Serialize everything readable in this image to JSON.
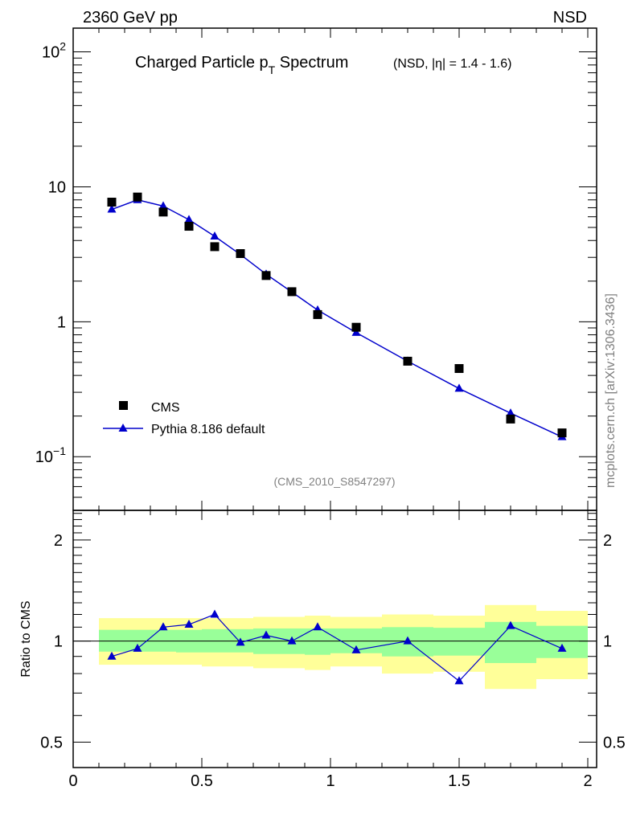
{
  "header": {
    "left": "2360 GeV pp",
    "right": "NSD",
    "watermark": "mcplots.cern.ch [arXiv:1306.3436]",
    "analysis_tag": "(CMS_2010_S8547297)"
  },
  "title": {
    "main": "Charged Particle p",
    "main_sub": "T",
    "main_suffix": " Spectrum",
    "detail": "(NSD, |η| = 1.4 - 1.6)"
  },
  "legend": {
    "data_label": "CMS",
    "mc_label": "Pythia 8.186 default"
  },
  "ratio_ylabel": "Ratio to CMS",
  "colors": {
    "mc_line": "#0000cc",
    "data_marker": "#000000",
    "band_inner": "#99ff99",
    "band_outer": "#ffff99",
    "watermark": "#808080"
  },
  "chart_data": [
    {
      "type": "scatter",
      "panel": "main",
      "yscale": "log",
      "xlim": [
        0,
        2
      ],
      "ylim": [
        0.04,
        150
      ],
      "yticks": [
        {
          "value": 100,
          "base": "10",
          "exp": "2"
        },
        {
          "value": 10,
          "base": "10",
          "exp": ""
        },
        {
          "value": 1,
          "base": "1",
          "exp": ""
        },
        {
          "value": 0.1,
          "base": "10",
          "exp": "−1"
        }
      ],
      "legend_placement": "bottom-left",
      "series": [
        {
          "name": "CMS",
          "marker": "square",
          "x": [
            0.15,
            0.25,
            0.35,
            0.45,
            0.55,
            0.65,
            0.75,
            0.85,
            0.95,
            1.1,
            1.3,
            1.5,
            1.7,
            1.9
          ],
          "y": [
            7.7,
            8.4,
            6.5,
            5.1,
            3.6,
            3.2,
            2.2,
            1.67,
            1.13,
            0.91,
            0.51,
            0.45,
            0.19,
            0.15
          ]
        },
        {
          "name": "Pythia 8.186 default",
          "marker": "triangle",
          "x": [
            0.15,
            0.25,
            0.35,
            0.45,
            0.55,
            0.65,
            0.75,
            0.85,
            0.95,
            1.1,
            1.3,
            1.5,
            1.7,
            1.9
          ],
          "y": [
            6.8,
            8.0,
            7.2,
            5.7,
            4.3,
            3.15,
            2.25,
            1.66,
            1.22,
            0.83,
            0.51,
            0.32,
            0.21,
            0.14
          ]
        }
      ]
    },
    {
      "type": "line",
      "panel": "ratio",
      "yscale": "log",
      "xlim": [
        0,
        2
      ],
      "ylim": [
        0.42,
        2.45
      ],
      "xticks": [
        "0",
        "0.5",
        "1",
        "1.5",
        "2"
      ],
      "yticks": [
        {
          "value": 0.5,
          "label": "0.5"
        },
        {
          "value": 1,
          "label": "1"
        },
        {
          "value": 2,
          "label": "2"
        }
      ],
      "reference_line": 1,
      "bands": [
        {
          "x0": 0.1,
          "x1": 0.2,
          "inner": [
            0.93,
            1.08
          ],
          "outer": [
            0.85,
            1.17
          ]
        },
        {
          "x0": 0.2,
          "x1": 0.3,
          "inner": [
            0.93,
            1.08
          ],
          "outer": [
            0.85,
            1.17
          ]
        },
        {
          "x0": 0.3,
          "x1": 0.4,
          "inner": [
            0.93,
            1.08
          ],
          "outer": [
            0.85,
            1.17
          ]
        },
        {
          "x0": 0.4,
          "x1": 0.5,
          "inner": [
            0.925,
            1.08
          ],
          "outer": [
            0.85,
            1.17
          ]
        },
        {
          "x0": 0.5,
          "x1": 0.6,
          "inner": [
            0.925,
            1.085
          ],
          "outer": [
            0.84,
            1.17
          ]
        },
        {
          "x0": 0.6,
          "x1": 0.7,
          "inner": [
            0.925,
            1.085
          ],
          "outer": [
            0.84,
            1.17
          ]
        },
        {
          "x0": 0.7,
          "x1": 0.8,
          "inner": [
            0.915,
            1.09
          ],
          "outer": [
            0.83,
            1.18
          ]
        },
        {
          "x0": 0.8,
          "x1": 0.9,
          "inner": [
            0.915,
            1.09
          ],
          "outer": [
            0.83,
            1.18
          ]
        },
        {
          "x0": 0.9,
          "x1": 1.0,
          "inner": [
            0.91,
            1.09
          ],
          "outer": [
            0.82,
            1.19
          ]
        },
        {
          "x0": 1.0,
          "x1": 1.2,
          "inner": [
            0.92,
            1.09
          ],
          "outer": [
            0.84,
            1.18
          ]
        },
        {
          "x0": 1.2,
          "x1": 1.4,
          "inner": [
            0.9,
            1.1
          ],
          "outer": [
            0.8,
            1.2
          ]
        },
        {
          "x0": 1.4,
          "x1": 1.6,
          "inner": [
            0.905,
            1.095
          ],
          "outer": [
            0.81,
            1.19
          ]
        },
        {
          "x0": 1.6,
          "x1": 1.8,
          "inner": [
            0.86,
            1.14
          ],
          "outer": [
            0.72,
            1.28
          ]
        },
        {
          "x0": 1.8,
          "x1": 2.0,
          "inner": [
            0.89,
            1.11
          ],
          "outer": [
            0.77,
            1.23
          ]
        }
      ],
      "series": [
        {
          "name": "Pythia 8.186 default",
          "marker": "triangle",
          "x": [
            0.15,
            0.25,
            0.35,
            0.45,
            0.55,
            0.65,
            0.75,
            0.85,
            0.95,
            1.1,
            1.3,
            1.5,
            1.7,
            1.9
          ],
          "y": [
            0.9,
            0.95,
            1.1,
            1.12,
            1.2,
            0.99,
            1.04,
            1.0,
            1.1,
            0.94,
            1.0,
            0.76,
            1.11,
            0.95
          ]
        }
      ]
    }
  ]
}
